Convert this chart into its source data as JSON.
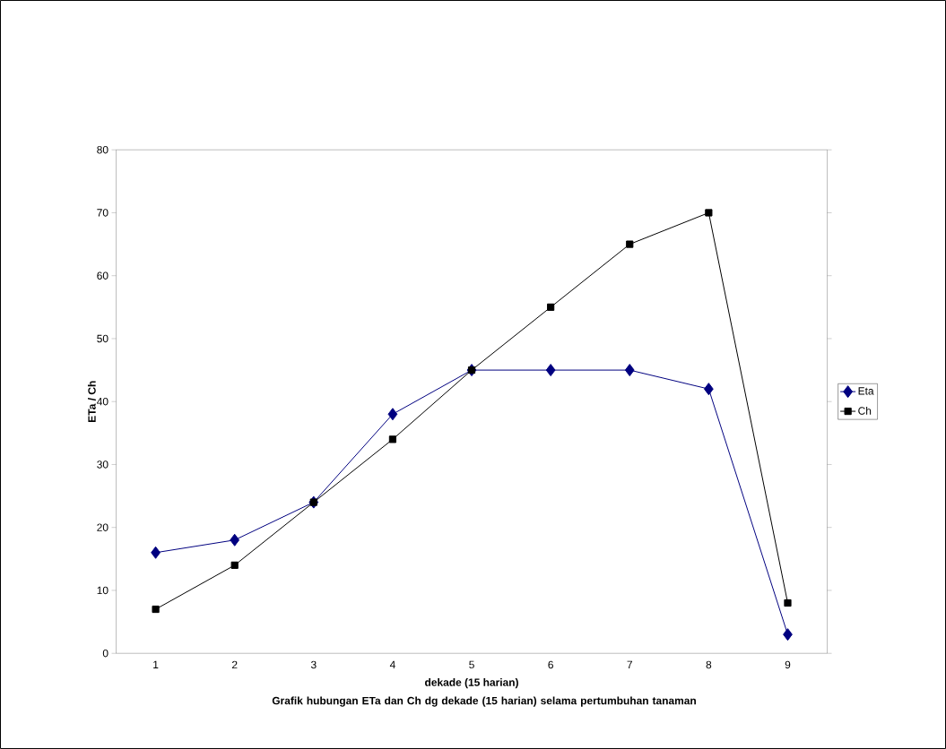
{
  "chart_data": {
    "type": "line",
    "xlabel": "dekade (15 harian)",
    "ylabel": "ETa / Ch",
    "categories": [
      "1",
      "2",
      "3",
      "4",
      "5",
      "6",
      "7",
      "8",
      "9"
    ],
    "series": [
      {
        "name": "Eta",
        "color": "#000080",
        "marker": "diamond",
        "values": [
          16,
          18,
          24,
          38,
          45,
          45,
          45,
          42,
          3
        ]
      },
      {
        "name": "Ch",
        "color": "#000000",
        "marker": "square",
        "values": [
          7,
          14,
          24,
          34,
          45,
          55,
          65,
          70,
          8
        ]
      }
    ],
    "ylim": [
      0,
      80
    ],
    "yticks": [
      0,
      10,
      20,
      30,
      40,
      50,
      60,
      70,
      80
    ],
    "legend": "right",
    "grid": false,
    "annotations": [
      "Grafik hubungan  ETa dan Ch dg dekade (15 harian) selama pertumbuhan tanaman"
    ]
  }
}
